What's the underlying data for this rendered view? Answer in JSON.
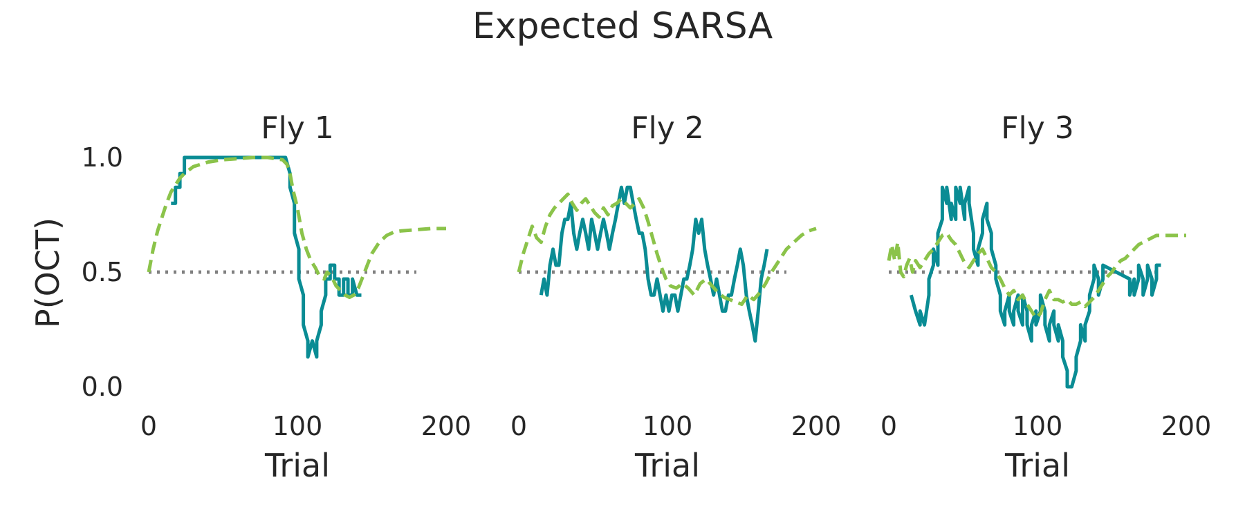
{
  "figure": {
    "title": "Expected SARSA",
    "ylabel": "P(OCT)"
  },
  "colors": {
    "data": "#0a8c94",
    "model": "#8bc34a",
    "ref": "#808080",
    "text": "#262626"
  },
  "chart_data": [
    {
      "type": "line",
      "title": "Fly 1",
      "xlabel": "Trial",
      "ylabel": "P(OCT)",
      "xlim": [
        0,
        200
      ],
      "ylim": [
        -0.05,
        1.0
      ],
      "xticks": [
        0,
        100,
        200
      ],
      "xtick_labels": [
        "0",
        "100",
        "200"
      ],
      "yticks": [
        0.0,
        0.5,
        1.0
      ],
      "ytick_labels": [
        "0.0",
        "0.5",
        "1.0"
      ],
      "grid": false,
      "reference_line": 0.5,
      "series": [
        {
          "role": "data",
          "style": "solid",
          "color": "#0a8c94",
          "x": [
            15,
            18,
            18,
            21,
            21,
            24,
            24,
            27,
            27,
            92,
            95,
            95,
            98,
            98,
            101,
            101,
            104,
            104,
            107,
            107,
            110,
            110,
            113,
            113,
            116,
            116,
            119,
            119,
            122,
            122,
            125,
            125,
            128,
            128,
            131,
            131,
            134,
            134,
            137,
            137,
            140,
            140,
            143
          ],
          "y": [
            0.8,
            0.8,
            0.87,
            0.87,
            0.93,
            0.93,
            1.0,
            1.0,
            1.0,
            1.0,
            0.93,
            0.87,
            0.8,
            0.67,
            0.6,
            0.47,
            0.4,
            0.27,
            0.2,
            0.13,
            0.2,
            0.2,
            0.13,
            0.2,
            0.27,
            0.33,
            0.4,
            0.47,
            0.47,
            0.53,
            0.53,
            0.47,
            0.47,
            0.4,
            0.4,
            0.47,
            0.47,
            0.4,
            0.4,
            0.47,
            0.4,
            0.4,
            0.4
          ]
        },
        {
          "role": "model",
          "style": "dashed",
          "color": "#8bc34a",
          "x": [
            0,
            3,
            6,
            9,
            12,
            15,
            18,
            21,
            24,
            30,
            40,
            50,
            60,
            70,
            80,
            90,
            93,
            95,
            97,
            100,
            103,
            106,
            109,
            112,
            115,
            118,
            120,
            123,
            126,
            129,
            132,
            135,
            138,
            141,
            144,
            147,
            150,
            155,
            160,
            165,
            170,
            180,
            190,
            200
          ],
          "y": [
            0.5,
            0.6,
            0.68,
            0.74,
            0.8,
            0.85,
            0.88,
            0.91,
            0.93,
            0.96,
            0.98,
            0.99,
            0.995,
            1.0,
            1.0,
            0.99,
            0.97,
            0.93,
            0.86,
            0.78,
            0.67,
            0.6,
            0.55,
            0.52,
            0.48,
            0.47,
            0.5,
            0.48,
            0.44,
            0.42,
            0.4,
            0.39,
            0.4,
            0.43,
            0.48,
            0.53,
            0.58,
            0.63,
            0.66,
            0.675,
            0.68,
            0.685,
            0.69,
            0.69
          ]
        }
      ]
    },
    {
      "type": "line",
      "title": "Fly 2",
      "xlabel": "Trial",
      "ylabel": "",
      "xlim": [
        0,
        200
      ],
      "ylim": [
        -0.05,
        1.0
      ],
      "xticks": [
        0,
        100,
        200
      ],
      "xtick_labels": [
        "0",
        "100",
        "200"
      ],
      "grid": false,
      "reference_line": 0.5,
      "series": [
        {
          "role": "data",
          "style": "solid",
          "color": "#0a8c94",
          "x": [
            15,
            17,
            19,
            21,
            23,
            25,
            27,
            29,
            31,
            33,
            35,
            37,
            39,
            41,
            43,
            45,
            47,
            49,
            51,
            53,
            55,
            57,
            59,
            61,
            63,
            65,
            67,
            69,
            71,
            73,
            75,
            77,
            79,
            81,
            83,
            85,
            87,
            89,
            91,
            93,
            95,
            97,
            99,
            101,
            103,
            105,
            107,
            109,
            111,
            113,
            115,
            117,
            119,
            121,
            123,
            125,
            127,
            129,
            131,
            133,
            135,
            137,
            139,
            141,
            143,
            145,
            147,
            149,
            151,
            153,
            155,
            157,
            159,
            161,
            163,
            165,
            167
          ],
          "y": [
            0.4,
            0.47,
            0.4,
            0.53,
            0.6,
            0.53,
            0.53,
            0.67,
            0.73,
            0.73,
            0.8,
            0.67,
            0.6,
            0.67,
            0.73,
            0.67,
            0.6,
            0.73,
            0.67,
            0.6,
            0.67,
            0.73,
            0.67,
            0.6,
            0.67,
            0.73,
            0.8,
            0.87,
            0.8,
            0.87,
            0.87,
            0.8,
            0.73,
            0.67,
            0.67,
            0.6,
            0.47,
            0.4,
            0.4,
            0.47,
            0.4,
            0.33,
            0.4,
            0.33,
            0.4,
            0.4,
            0.33,
            0.4,
            0.47,
            0.47,
            0.53,
            0.6,
            0.73,
            0.67,
            0.73,
            0.6,
            0.53,
            0.47,
            0.4,
            0.47,
            0.4,
            0.33,
            0.33,
            0.4,
            0.4,
            0.47,
            0.53,
            0.6,
            0.53,
            0.4,
            0.33,
            0.27,
            0.2,
            0.33,
            0.47,
            0.53,
            0.6
          ]
        },
        {
          "role": "model",
          "style": "dashed",
          "color": "#8bc34a",
          "x": [
            0,
            3,
            6,
            9,
            12,
            15,
            18,
            21,
            24,
            27,
            30,
            33,
            36,
            39,
            42,
            45,
            48,
            51,
            54,
            57,
            60,
            63,
            66,
            69,
            72,
            75,
            78,
            81,
            84,
            87,
            90,
            93,
            96,
            99,
            102,
            106,
            110,
            114,
            118,
            122,
            126,
            130,
            134,
            138,
            142,
            146,
            150,
            154,
            158,
            162,
            166,
            170,
            175,
            180,
            185,
            190,
            195,
            200
          ],
          "y": [
            0.5,
            0.58,
            0.64,
            0.7,
            0.65,
            0.63,
            0.7,
            0.75,
            0.78,
            0.8,
            0.82,
            0.84,
            0.8,
            0.77,
            0.8,
            0.82,
            0.79,
            0.76,
            0.74,
            0.78,
            0.75,
            0.79,
            0.8,
            0.82,
            0.8,
            0.78,
            0.8,
            0.82,
            0.78,
            0.72,
            0.65,
            0.58,
            0.52,
            0.47,
            0.44,
            0.43,
            0.45,
            0.43,
            0.4,
            0.45,
            0.47,
            0.44,
            0.41,
            0.39,
            0.38,
            0.37,
            0.36,
            0.4,
            0.38,
            0.41,
            0.45,
            0.5,
            0.55,
            0.6,
            0.63,
            0.66,
            0.68,
            0.69
          ]
        }
      ]
    },
    {
      "type": "line",
      "title": "Fly 3",
      "xlabel": "Trial",
      "ylabel": "",
      "xlim": [
        0,
        200
      ],
      "ylim": [
        -0.05,
        1.0
      ],
      "xticks": [
        0,
        100,
        200
      ],
      "xtick_labels": [
        "0",
        "100",
        "200"
      ],
      "grid": false,
      "reference_line": 0.5,
      "series": [
        {
          "role": "data",
          "style": "solid",
          "color": "#0a8c94",
          "x": [
            15,
            18,
            18,
            21,
            21,
            24,
            24,
            27,
            27,
            30,
            30,
            33,
            33,
            36,
            36,
            39,
            39,
            42,
            42,
            45,
            45,
            48,
            48,
            51,
            51,
            54,
            54,
            57,
            57,
            60,
            60,
            63,
            63,
            66,
            66,
            69,
            69,
            72,
            72,
            75,
            75,
            78,
            78,
            81,
            81,
            84,
            84,
            87,
            87,
            90,
            90,
            93,
            93,
            96,
            96,
            99,
            99,
            102,
            102,
            105,
            105,
            108,
            108,
            111,
            111,
            114,
            114,
            117,
            117,
            120,
            120,
            123,
            123,
            126,
            126,
            129,
            129,
            132,
            132,
            135,
            135,
            138,
            138,
            141,
            141,
            144,
            144,
            162,
            162,
            165,
            165,
            168,
            168,
            171,
            171,
            174,
            174,
            177,
            177,
            180,
            180,
            183
          ],
          "y": [
            0.4,
            0.33,
            0.33,
            0.27,
            0.33,
            0.27,
            0.27,
            0.4,
            0.47,
            0.53,
            0.6,
            0.53,
            0.67,
            0.73,
            0.87,
            0.8,
            0.87,
            0.73,
            0.8,
            0.73,
            0.87,
            0.8,
            0.87,
            0.73,
            0.8,
            0.87,
            0.8,
            0.67,
            0.6,
            0.53,
            0.6,
            0.67,
            0.73,
            0.8,
            0.73,
            0.67,
            0.6,
            0.53,
            0.47,
            0.4,
            0.33,
            0.27,
            0.33,
            0.4,
            0.33,
            0.27,
            0.33,
            0.4,
            0.33,
            0.27,
            0.4,
            0.33,
            0.27,
            0.2,
            0.27,
            0.33,
            0.27,
            0.33,
            0.4,
            0.33,
            0.27,
            0.2,
            0.27,
            0.33,
            0.27,
            0.2,
            0.27,
            0.2,
            0.13,
            0.07,
            0.0,
            0.0,
            0.0,
            0.07,
            0.13,
            0.2,
            0.27,
            0.2,
            0.27,
            0.33,
            0.4,
            0.47,
            0.53,
            0.47,
            0.4,
            0.47,
            0.53,
            0.47,
            0.4,
            0.47,
            0.4,
            0.47,
            0.53,
            0.47,
            0.4,
            0.47,
            0.53,
            0.47,
            0.4,
            0.47,
            0.53,
            0.53
          ]
        },
        {
          "role": "model",
          "style": "dashed",
          "color": "#8bc34a",
          "x": [
            0,
            2,
            4,
            6,
            8,
            10,
            12,
            14,
            16,
            18,
            21,
            24,
            27,
            30,
            33,
            36,
            39,
            42,
            45,
            48,
            51,
            54,
            57,
            60,
            63,
            66,
            69,
            72,
            75,
            78,
            81,
            84,
            87,
            90,
            93,
            96,
            99,
            102,
            105,
            108,
            111,
            114,
            117,
            120,
            123,
            126,
            129,
            132,
            135,
            138,
            141,
            144,
            147,
            150,
            153,
            156,
            159,
            162,
            165,
            168,
            171,
            174,
            177,
            180,
            185,
            190,
            195,
            200
          ],
          "y": [
            0.55,
            0.62,
            0.55,
            0.63,
            0.5,
            0.48,
            0.53,
            0.56,
            0.5,
            0.55,
            0.52,
            0.55,
            0.58,
            0.6,
            0.63,
            0.66,
            0.67,
            0.64,
            0.62,
            0.58,
            0.54,
            0.52,
            0.55,
            0.58,
            0.6,
            0.56,
            0.52,
            0.5,
            0.47,
            0.43,
            0.4,
            0.42,
            0.38,
            0.4,
            0.36,
            0.33,
            0.3,
            0.32,
            0.38,
            0.42,
            0.38,
            0.38,
            0.37,
            0.38,
            0.36,
            0.36,
            0.37,
            0.35,
            0.37,
            0.39,
            0.42,
            0.45,
            0.48,
            0.5,
            0.53,
            0.55,
            0.56,
            0.58,
            0.6,
            0.62,
            0.63,
            0.64,
            0.65,
            0.66,
            0.66,
            0.66,
            0.66,
            0.66
          ]
        }
      ]
    }
  ]
}
